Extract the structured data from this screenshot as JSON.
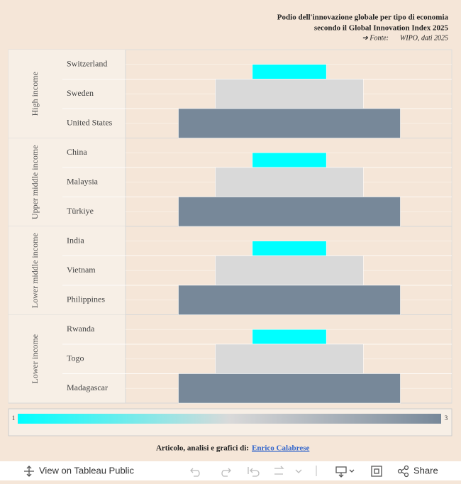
{
  "chart_data": {
    "type": "podium",
    "title": "Podio dell'innovazione globale per tipo di economia",
    "subtitle": "secondo il Global Innovation Index 2025",
    "source_prefix": "➔ Fonte:",
    "source": "WIPO, dati 2025",
    "groups": [
      {
        "name": "High income",
        "categories": [
          "Switzerland",
          "Sweden",
          "United States"
        ],
        "values": [
          1,
          2,
          3
        ]
      },
      {
        "name": "Upper middle income",
        "categories": [
          "China",
          "Malaysia",
          "Türkiye"
        ],
        "values": [
          1,
          2,
          3
        ]
      },
      {
        "name": "Lower middle income",
        "categories": [
          "India",
          "Vietnam",
          "Philippines"
        ],
        "values": [
          1,
          2,
          3
        ]
      },
      {
        "name": "Lower income",
        "categories": [
          "Rwanda",
          "Togo",
          "Madagascar"
        ],
        "values": [
          1,
          2,
          3
        ]
      }
    ],
    "color_scale": {
      "min": 1,
      "max": 3,
      "colors": [
        "#00ffff",
        "#d9d9d9",
        "#778899"
      ]
    }
  },
  "footer": {
    "text": "Articolo, analisi e grafici di:",
    "link": "Enrico Calabrese"
  },
  "toolbar": {
    "view": "View on Tableau Public",
    "share": "Share"
  }
}
